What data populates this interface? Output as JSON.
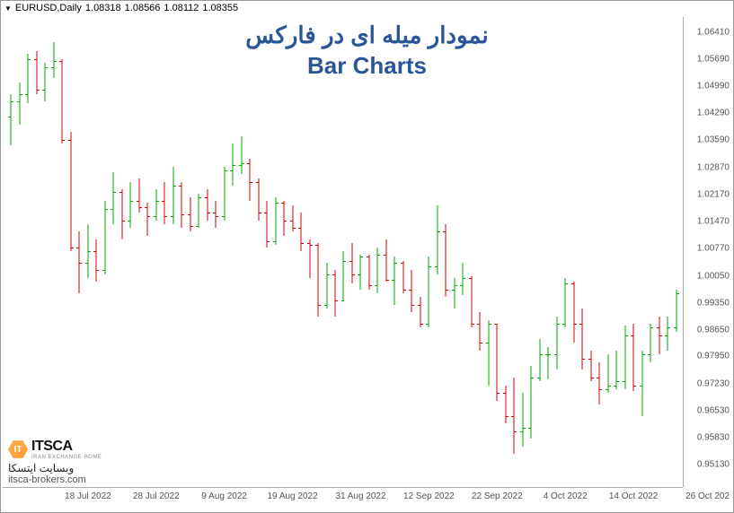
{
  "ticker": {
    "symbol": "EURUSD,Daily",
    "o": "1.08318",
    "h": "1.08566",
    "l": "1.08112",
    "c": "1.08355"
  },
  "title": {
    "line1": "نمودار میله ای در فارکس",
    "line2": "Bar Charts",
    "color": "#2a5599",
    "fontsize": 26
  },
  "chart": {
    "type": "ohlc-bar",
    "up_color": "#00a800",
    "down_color": "#d40000",
    "background": "#ffffff",
    "grid_color": "#aaaaaa",
    "ymin": 0.945,
    "ymax": 1.068,
    "y_ticks": [
      1.0641,
      1.0569,
      1.0499,
      1.0429,
      1.0359,
      1.0287,
      1.0217,
      1.0147,
      1.0077,
      1.0005,
      0.9935,
      0.9865,
      0.9795,
      0.9723,
      0.9653,
      0.9583,
      0.9513
    ],
    "x_labels": [
      "18 Jul 2022",
      "28 Jul 2022",
      "9 Aug 2022",
      "19 Aug 2022",
      "31 Aug 2022",
      "12 Sep 2022",
      "22 Sep 2022",
      "4 Oct 2022",
      "14 Oct 2022"
    ],
    "x_last": "26 Oct 202",
    "bars": [
      {
        "o": 1.042,
        "h": 1.048,
        "l": 1.0345,
        "c": 1.046,
        "d": "u"
      },
      {
        "o": 1.046,
        "h": 1.051,
        "l": 1.04,
        "c": 1.048,
        "d": "u"
      },
      {
        "o": 1.048,
        "h": 1.0585,
        "l": 1.0455,
        "c": 1.057,
        "d": "u"
      },
      {
        "o": 1.057,
        "h": 1.059,
        "l": 1.048,
        "c": 1.049,
        "d": "d"
      },
      {
        "o": 1.049,
        "h": 1.056,
        "l": 1.046,
        "c": 1.055,
        "d": "u"
      },
      {
        "o": 1.055,
        "h": 1.0615,
        "l": 1.052,
        "c": 1.0565,
        "d": "u"
      },
      {
        "o": 1.0565,
        "h": 1.057,
        "l": 1.035,
        "c": 1.036,
        "d": "d"
      },
      {
        "o": 1.036,
        "h": 1.038,
        "l": 1.007,
        "c": 1.008,
        "d": "d"
      },
      {
        "o": 1.008,
        "h": 1.012,
        "l": 0.996,
        "c": 1.004,
        "d": "d"
      },
      {
        "o": 1.004,
        "h": 1.014,
        "l": 1.0,
        "c": 1.007,
        "d": "u"
      },
      {
        "o": 1.007,
        "h": 1.01,
        "l": 0.999,
        "c": 1.002,
        "d": "d"
      },
      {
        "o": 1.002,
        "h": 1.02,
        "l": 1.001,
        "c": 1.018,
        "d": "u"
      },
      {
        "o": 1.018,
        "h": 1.0275,
        "l": 1.014,
        "c": 1.0225,
        "d": "u"
      },
      {
        "o": 1.0225,
        "h": 1.023,
        "l": 1.01,
        "c": 1.015,
        "d": "d"
      },
      {
        "o": 1.015,
        "h": 1.025,
        "l": 1.013,
        "c": 1.02,
        "d": "u"
      },
      {
        "o": 1.02,
        "h": 1.026,
        "l": 1.017,
        "c": 1.0185,
        "d": "d"
      },
      {
        "o": 1.0185,
        "h": 1.0195,
        "l": 1.011,
        "c": 1.016,
        "d": "d"
      },
      {
        "o": 1.016,
        "h": 1.023,
        "l": 1.015,
        "c": 1.02,
        "d": "u"
      },
      {
        "o": 1.02,
        "h": 1.025,
        "l": 1.014,
        "c": 1.016,
        "d": "d"
      },
      {
        "o": 1.016,
        "h": 1.029,
        "l": 1.014,
        "c": 1.024,
        "d": "u"
      },
      {
        "o": 1.024,
        "h": 1.025,
        "l": 1.013,
        "c": 1.0165,
        "d": "d"
      },
      {
        "o": 1.0165,
        "h": 1.021,
        "l": 1.012,
        "c": 1.0135,
        "d": "d"
      },
      {
        "o": 1.0135,
        "h": 1.022,
        "l": 1.013,
        "c": 1.021,
        "d": "u"
      },
      {
        "o": 1.021,
        "h": 1.023,
        "l": 1.015,
        "c": 1.017,
        "d": "d"
      },
      {
        "o": 1.017,
        "h": 1.02,
        "l": 1.013,
        "c": 1.016,
        "d": "d"
      },
      {
        "o": 1.016,
        "h": 1.029,
        "l": 1.015,
        "c": 1.028,
        "d": "u"
      },
      {
        "o": 1.028,
        "h": 1.035,
        "l": 1.024,
        "c": 1.0295,
        "d": "u"
      },
      {
        "o": 1.0295,
        "h": 1.037,
        "l": 1.027,
        "c": 1.03,
        "d": "u"
      },
      {
        "o": 1.03,
        "h": 1.031,
        "l": 1.02,
        "c": 1.025,
        "d": "d"
      },
      {
        "o": 1.025,
        "h": 1.026,
        "l": 1.015,
        "c": 1.017,
        "d": "d"
      },
      {
        "o": 1.017,
        "h": 1.02,
        "l": 1.008,
        "c": 1.0095,
        "d": "d"
      },
      {
        "o": 1.0095,
        "h": 1.021,
        "l": 1.0085,
        "c": 1.0195,
        "d": "u"
      },
      {
        "o": 1.0195,
        "h": 1.02,
        "l": 1.011,
        "c": 1.015,
        "d": "d"
      },
      {
        "o": 1.015,
        "h": 1.019,
        "l": 1.012,
        "c": 1.013,
        "d": "d"
      },
      {
        "o": 1.013,
        "h": 1.017,
        "l": 1.007,
        "c": 1.009,
        "d": "d"
      },
      {
        "o": 1.009,
        "h": 1.01,
        "l": 1.0,
        "c": 1.0085,
        "d": "d"
      },
      {
        "o": 1.0085,
        "h": 1.009,
        "l": 0.99,
        "c": 0.993,
        "d": "d"
      },
      {
        "o": 0.993,
        "h": 1.004,
        "l": 0.992,
        "c": 1.001,
        "d": "u"
      },
      {
        "o": 1.001,
        "h": 1.002,
        "l": 0.99,
        "c": 0.994,
        "d": "d"
      },
      {
        "o": 0.994,
        "h": 1.007,
        "l": 0.994,
        "c": 1.0045,
        "d": "u"
      },
      {
        "o": 1.0045,
        "h": 1.009,
        "l": 0.9985,
        "c": 1.001,
        "d": "d"
      },
      {
        "o": 1.001,
        "h": 1.006,
        "l": 0.997,
        "c": 1.0055,
        "d": "u"
      },
      {
        "o": 1.0055,
        "h": 1.006,
        "l": 0.997,
        "c": 0.998,
        "d": "d"
      },
      {
        "o": 0.998,
        "h": 1.008,
        "l": 0.996,
        "c": 1.006,
        "d": "u"
      },
      {
        "o": 1.006,
        "h": 1.01,
        "l": 0.999,
        "c": 0.9995,
        "d": "d"
      },
      {
        "o": 0.9995,
        "h": 1.0055,
        "l": 0.993,
        "c": 1.004,
        "d": "u"
      },
      {
        "o": 1.004,
        "h": 1.0045,
        "l": 0.996,
        "c": 0.997,
        "d": "d"
      },
      {
        "o": 0.997,
        "h": 1.002,
        "l": 0.991,
        "c": 0.993,
        "d": "d"
      },
      {
        "o": 0.993,
        "h": 0.995,
        "l": 0.987,
        "c": 0.988,
        "d": "d"
      },
      {
        "o": 0.988,
        "h": 1.0055,
        "l": 0.987,
        "c": 1.003,
        "d": "u"
      },
      {
        "o": 1.003,
        "h": 1.019,
        "l": 1.001,
        "c": 1.012,
        "d": "u"
      },
      {
        "o": 1.012,
        "h": 1.014,
        "l": 0.995,
        "c": 0.997,
        "d": "d"
      },
      {
        "o": 0.997,
        "h": 1.0,
        "l": 0.992,
        "c": 0.998,
        "d": "u"
      },
      {
        "o": 0.998,
        "h": 1.004,
        "l": 0.9955,
        "c": 1.0,
        "d": "u"
      },
      {
        "o": 1.0,
        "h": 1.0005,
        "l": 0.987,
        "c": 0.988,
        "d": "d"
      },
      {
        "o": 0.988,
        "h": 0.991,
        "l": 0.981,
        "c": 0.983,
        "d": "d"
      },
      {
        "o": 0.983,
        "h": 0.989,
        "l": 0.972,
        "c": 0.988,
        "d": "u"
      },
      {
        "o": 0.988,
        "h": 0.988,
        "l": 0.968,
        "c": 0.97,
        "d": "d"
      },
      {
        "o": 0.97,
        "h": 0.972,
        "l": 0.962,
        "c": 0.964,
        "d": "d"
      },
      {
        "o": 0.964,
        "h": 0.974,
        "l": 0.954,
        "c": 0.96,
        "d": "d"
      },
      {
        "o": 0.96,
        "h": 0.97,
        "l": 0.956,
        "c": 0.961,
        "d": "u"
      },
      {
        "o": 0.961,
        "h": 0.977,
        "l": 0.958,
        "c": 0.974,
        "d": "u"
      },
      {
        "o": 0.974,
        "h": 0.984,
        "l": 0.973,
        "c": 0.98,
        "d": "u"
      },
      {
        "o": 0.98,
        "h": 0.982,
        "l": 0.9735,
        "c": 0.98,
        "d": "u"
      },
      {
        "o": 0.98,
        "h": 0.99,
        "l": 0.976,
        "c": 0.988,
        "d": "u"
      },
      {
        "o": 0.988,
        "h": 1.0,
        "l": 0.987,
        "c": 0.9985,
        "d": "u"
      },
      {
        "o": 0.9985,
        "h": 0.999,
        "l": 0.983,
        "c": 0.988,
        "d": "d"
      },
      {
        "o": 0.988,
        "h": 0.992,
        "l": 0.976,
        "c": 0.979,
        "d": "d"
      },
      {
        "o": 0.979,
        "h": 0.981,
        "l": 0.973,
        "c": 0.974,
        "d": "d"
      },
      {
        "o": 0.974,
        "h": 0.978,
        "l": 0.967,
        "c": 0.971,
        "d": "d"
      },
      {
        "o": 0.971,
        "h": 0.98,
        "l": 0.97,
        "c": 0.972,
        "d": "u"
      },
      {
        "o": 0.972,
        "h": 0.981,
        "l": 0.971,
        "c": 0.973,
        "d": "u"
      },
      {
        "o": 0.973,
        "h": 0.9875,
        "l": 0.971,
        "c": 0.985,
        "d": "u"
      },
      {
        "o": 0.985,
        "h": 0.988,
        "l": 0.9705,
        "c": 0.972,
        "d": "d"
      },
      {
        "o": 0.972,
        "h": 0.981,
        "l": 0.964,
        "c": 0.98,
        "d": "u"
      },
      {
        "o": 0.98,
        "h": 0.988,
        "l": 0.978,
        "c": 0.987,
        "d": "u"
      },
      {
        "o": 0.987,
        "h": 0.99,
        "l": 0.98,
        "c": 0.985,
        "d": "d"
      },
      {
        "o": 0.985,
        "h": 0.99,
        "l": 0.981,
        "c": 0.987,
        "d": "u"
      },
      {
        "o": 0.987,
        "h": 0.997,
        "l": 0.986,
        "c": 0.996,
        "d": "u"
      }
    ]
  },
  "logo": {
    "brand": "ITSCA",
    "tagline": "IRAN EXCHANGE HOME",
    "site_fa": "وبسایت ایتسکا",
    "site_url": "itsca-brokers.com"
  }
}
